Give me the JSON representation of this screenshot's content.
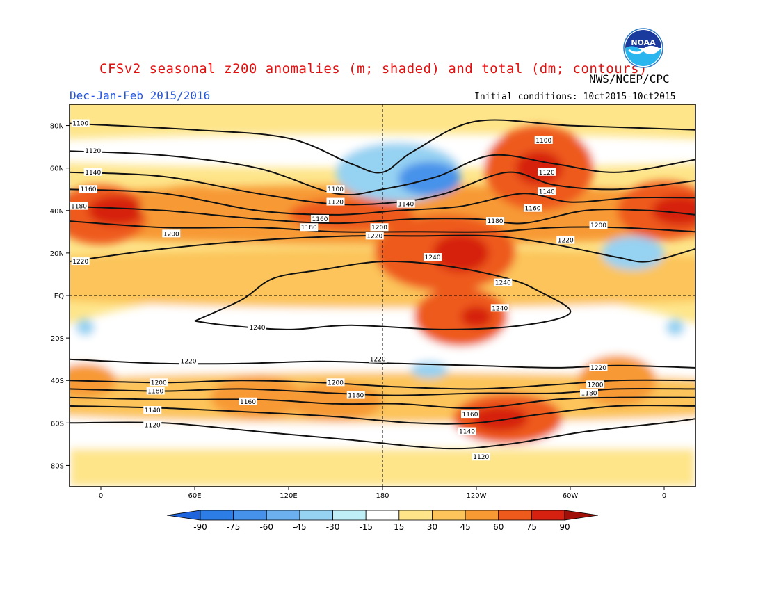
{
  "header": {
    "title": "CFSv2 seasonal z200 anomalies (m; shaded) and total (dm; contours)",
    "agency": "NWS/NCEP/CPC",
    "season": "Dec-Jan-Feb 2015/2016",
    "initial_conditions": "Initial conditions: 10ct2015-10ct2015",
    "logo_text": "NOAA"
  },
  "map": {
    "projection": "cylindrical equidistant",
    "lon_range": [
      -20,
      380
    ],
    "lat_range": [
      -90,
      90
    ],
    "lat_ticks": [
      {
        "value": 80,
        "label": "80N"
      },
      {
        "value": 60,
        "label": "60N"
      },
      {
        "value": 40,
        "label": "40N"
      },
      {
        "value": 20,
        "label": "20N"
      },
      {
        "value": 0,
        "label": "EQ"
      },
      {
        "value": -20,
        "label": "20S"
      },
      {
        "value": -40,
        "label": "40S"
      },
      {
        "value": -60,
        "label": "60S"
      },
      {
        "value": -80,
        "label": "80S"
      }
    ],
    "lon_ticks": [
      {
        "value": 0,
        "label": "0"
      },
      {
        "value": 60,
        "label": "60E"
      },
      {
        "value": 120,
        "label": "120E"
      },
      {
        "value": 180,
        "label": "180"
      },
      {
        "value": 240,
        "label": "120W"
      },
      {
        "value": 300,
        "label": "60W"
      },
      {
        "value": 360,
        "label": "0"
      }
    ],
    "reference_lines": {
      "equator": 0,
      "dateline": 180
    },
    "anomaly_patches": [
      {
        "lon": 0,
        "lat": 38,
        "rx": 30,
        "ry": 14,
        "level": 75
      },
      {
        "lon": 360,
        "lat": 40,
        "rx": 30,
        "ry": 14,
        "level": 75
      },
      {
        "lon": 10,
        "lat": 40,
        "rx": 18,
        "ry": 7,
        "level": 90
      },
      {
        "lon": 370,
        "lat": 40,
        "rx": 18,
        "ry": 7,
        "level": 90
      },
      {
        "lon": 60,
        "lat": 42,
        "rx": 35,
        "ry": 10,
        "level": 60
      },
      {
        "lon": 160,
        "lat": 38,
        "rx": 40,
        "ry": 8,
        "level": 75
      },
      {
        "lon": 280,
        "lat": 60,
        "rx": 35,
        "ry": 20,
        "level": 75
      },
      {
        "lon": 280,
        "lat": 60,
        "rx": 15,
        "ry": 8,
        "level": 90
      },
      {
        "lon": 220,
        "lat": 20,
        "rx": 45,
        "ry": 18,
        "level": 75
      },
      {
        "lon": 230,
        "lat": 20,
        "rx": 18,
        "ry": 9,
        "level": 90
      },
      {
        "lon": 230,
        "lat": -10,
        "rx": 30,
        "ry": 14,
        "level": 75
      },
      {
        "lon": 240,
        "lat": -10,
        "rx": 10,
        "ry": 5,
        "level": 90
      },
      {
        "lon": 100,
        "lat": -48,
        "rx": 30,
        "ry": 10,
        "level": 60
      },
      {
        "lon": 150,
        "lat": -50,
        "rx": 30,
        "ry": 9,
        "level": 60
      },
      {
        "lon": 260,
        "lat": -58,
        "rx": 35,
        "ry": 12,
        "level": 75
      },
      {
        "lon": 255,
        "lat": -58,
        "rx": 18,
        "ry": 6,
        "level": 90
      },
      {
        "lon": 330,
        "lat": -40,
        "rx": 25,
        "ry": 12,
        "level": 60
      },
      {
        "lon": -10,
        "lat": -40,
        "rx": 20,
        "ry": 8,
        "level": 60
      }
    ],
    "negative_patches": [
      {
        "lon": 190,
        "lat": 58,
        "rx": 40,
        "ry": 14,
        "level": -30
      },
      {
        "lon": 210,
        "lat": 55,
        "rx": 20,
        "ry": 8,
        "level": -60
      },
      {
        "lon": 340,
        "lat": 20,
        "rx": 20,
        "ry": 8,
        "level": -30
      },
      {
        "lon": 210,
        "lat": -35,
        "rx": 12,
        "ry": 4,
        "level": -30
      },
      {
        "lon": -10,
        "lat": -15,
        "rx": 6,
        "ry": 4,
        "level": -30
      },
      {
        "lon": 367,
        "lat": -15,
        "rx": 6,
        "ry": 4,
        "level": -30
      }
    ],
    "contour_lines": [
      {
        "value": 1100,
        "points": [
          [
            -20,
            81
          ],
          [
            60,
            78
          ],
          [
            120,
            74
          ],
          [
            160,
            62
          ],
          [
            180,
            58
          ],
          [
            200,
            68
          ],
          [
            240,
            82
          ],
          [
            300,
            80
          ],
          [
            380,
            78
          ]
        ]
      },
      {
        "value": 1120,
        "points": [
          [
            -20,
            68
          ],
          [
            40,
            66
          ],
          [
            100,
            60
          ],
          [
            150,
            48
          ],
          [
            180,
            50
          ],
          [
            215,
            56
          ],
          [
            250,
            66
          ],
          [
            290,
            62
          ],
          [
            330,
            58
          ],
          [
            380,
            64
          ]
        ]
      },
      {
        "value": 1140,
        "points": [
          [
            -20,
            58
          ],
          [
            40,
            56
          ],
          [
            100,
            48
          ],
          [
            150,
            43
          ],
          [
            190,
            44
          ],
          [
            220,
            48
          ],
          [
            260,
            58
          ],
          [
            290,
            52
          ],
          [
            330,
            50
          ],
          [
            380,
            54
          ]
        ]
      },
      {
        "value": 1160,
        "points": [
          [
            -20,
            50
          ],
          [
            40,
            48
          ],
          [
            100,
            40
          ],
          [
            150,
            38
          ],
          [
            190,
            40
          ],
          [
            230,
            42
          ],
          [
            270,
            48
          ],
          [
            300,
            44
          ],
          [
            340,
            46
          ],
          [
            380,
            46
          ]
        ]
      },
      {
        "value": 1180,
        "points": [
          [
            -20,
            42
          ],
          [
            40,
            40
          ],
          [
            100,
            36
          ],
          [
            150,
            34
          ],
          [
            200,
            36
          ],
          [
            240,
            36
          ],
          [
            270,
            34
          ],
          [
            310,
            40
          ],
          [
            350,
            40
          ],
          [
            380,
            38
          ]
        ]
      },
      {
        "value": 1200,
        "points": [
          [
            -20,
            35
          ],
          [
            40,
            32
          ],
          [
            100,
            32
          ],
          [
            150,
            30
          ],
          [
            200,
            30
          ],
          [
            250,
            30
          ],
          [
            290,
            32
          ],
          [
            330,
            32
          ],
          [
            380,
            30
          ]
        ]
      },
      {
        "value": 1220,
        "points": [
          [
            -20,
            16
          ],
          [
            40,
            22
          ],
          [
            100,
            26
          ],
          [
            160,
            28
          ],
          [
            200,
            28
          ],
          [
            250,
            28
          ],
          [
            290,
            24
          ],
          [
            330,
            18
          ],
          [
            350,
            16
          ],
          [
            380,
            22
          ]
        ]
      },
      {
        "value": 1240,
        "points": [
          [
            60,
            -12
          ],
          [
            90,
            -2
          ],
          [
            110,
            8
          ],
          [
            140,
            12
          ],
          [
            180,
            16
          ],
          [
            220,
            14
          ],
          [
            260,
            8
          ],
          [
            280,
            2
          ],
          [
            300,
            -8
          ],
          [
            270,
            -14
          ],
          [
            220,
            -16
          ],
          [
            160,
            -14
          ],
          [
            120,
            -16
          ],
          [
            80,
            -14
          ],
          [
            60,
            -12
          ]
        ]
      },
      {
        "value": 1220,
        "points": [
          [
            -20,
            -30
          ],
          [
            40,
            -32
          ],
          [
            90,
            -32
          ],
          [
            140,
            -31
          ],
          [
            190,
            -32
          ],
          [
            240,
            -33
          ],
          [
            290,
            -34
          ],
          [
            330,
            -33
          ],
          [
            380,
            -34
          ]
        ]
      },
      {
        "value": 1200,
        "points": [
          [
            -20,
            -40
          ],
          [
            40,
            -41
          ],
          [
            90,
            -40
          ],
          [
            140,
            -41
          ],
          [
            190,
            -43
          ],
          [
            240,
            -44
          ],
          [
            290,
            -42
          ],
          [
            330,
            -40
          ],
          [
            380,
            -40
          ]
        ]
      },
      {
        "value": 1180,
        "points": [
          [
            -20,
            -44
          ],
          [
            40,
            -45
          ],
          [
            90,
            -44
          ],
          [
            150,
            -46
          ],
          [
            190,
            -47
          ],
          [
            240,
            -46
          ],
          [
            290,
            -46
          ],
          [
            330,
            -44
          ],
          [
            380,
            -44
          ]
        ]
      },
      {
        "value": 1160,
        "points": [
          [
            -20,
            -48
          ],
          [
            40,
            -49
          ],
          [
            100,
            -49
          ],
          [
            150,
            -51
          ],
          [
            190,
            -51
          ],
          [
            240,
            -53
          ],
          [
            290,
            -49
          ],
          [
            330,
            -48
          ],
          [
            380,
            -48
          ]
        ]
      },
      {
        "value": 1140,
        "points": [
          [
            -20,
            -52
          ],
          [
            40,
            -53
          ],
          [
            100,
            -55
          ],
          [
            150,
            -57
          ],
          [
            200,
            -60
          ],
          [
            240,
            -60
          ],
          [
            280,
            -56
          ],
          [
            330,
            -52
          ],
          [
            380,
            -52
          ]
        ]
      },
      {
        "value": 1120,
        "points": [
          [
            -20,
            -60
          ],
          [
            40,
            -60
          ],
          [
            100,
            -64
          ],
          [
            160,
            -68
          ],
          [
            220,
            -72
          ],
          [
            260,
            -70
          ],
          [
            310,
            -64
          ],
          [
            360,
            -60
          ],
          [
            380,
            -58
          ]
        ]
      }
    ],
    "contour_labels": [
      {
        "text": "1100",
        "lon": -13,
        "lat": 81
      },
      {
        "text": "1120",
        "lon": -5,
        "lat": 68
      },
      {
        "text": "1140",
        "lon": -5,
        "lat": 58
      },
      {
        "text": "1160",
        "lon": -8,
        "lat": 50
      },
      {
        "text": "1180",
        "lon": -14,
        "lat": 42
      },
      {
        "text": "1200",
        "lon": 45,
        "lat": 29
      },
      {
        "text": "1220",
        "lon": -13,
        "lat": 16
      },
      {
        "text": "1100",
        "lon": 150,
        "lat": 50
      },
      {
        "text": "1120",
        "lon": 150,
        "lat": 44
      },
      {
        "text": "1160",
        "lon": 140,
        "lat": 36
      },
      {
        "text": "1180",
        "lon": 133,
        "lat": 32
      },
      {
        "text": "1140",
        "lon": 195,
        "lat": 43
      },
      {
        "text": "1200",
        "lon": 178,
        "lat": 32
      },
      {
        "text": "1220",
        "lon": 175,
        "lat": 28
      },
      {
        "text": "1240",
        "lon": 212,
        "lat": 18
      },
      {
        "text": "1100",
        "lon": 283,
        "lat": 73
      },
      {
        "text": "1120",
        "lon": 285,
        "lat": 58
      },
      {
        "text": "1140",
        "lon": 285,
        "lat": 49
      },
      {
        "text": "1160",
        "lon": 276,
        "lat": 41
      },
      {
        "text": "1180",
        "lon": 252,
        "lat": 35
      },
      {
        "text": "1200",
        "lon": 318,
        "lat": 33
      },
      {
        "text": "1220",
        "lon": 297,
        "lat": 26
      },
      {
        "text": "1240",
        "lon": 257,
        "lat": 6
      },
      {
        "text": "1240",
        "lon": 255,
        "lat": -6
      },
      {
        "text": "1240",
        "lon": 100,
        "lat": -15
      },
      {
        "text": "1220",
        "lon": 56,
        "lat": -31
      },
      {
        "text": "1220",
        "lon": 177,
        "lat": -30
      },
      {
        "text": "1220",
        "lon": 318,
        "lat": -34
      },
      {
        "text": "1200",
        "lon": 37,
        "lat": -41
      },
      {
        "text": "1200",
        "lon": 150,
        "lat": -41
      },
      {
        "text": "1200",
        "lon": 316,
        "lat": -42
      },
      {
        "text": "1180",
        "lon": 35,
        "lat": -45
      },
      {
        "text": "1180",
        "lon": 163,
        "lat": -47
      },
      {
        "text": "1180",
        "lon": 312,
        "lat": -46
      },
      {
        "text": "1160",
        "lon": 94,
        "lat": -50
      },
      {
        "text": "1160",
        "lon": 236,
        "lat": -56
      },
      {
        "text": "1140",
        "lon": 33,
        "lat": -54
      },
      {
        "text": "1140",
        "lon": 234,
        "lat": -64
      },
      {
        "text": "1120",
        "lon": 33,
        "lat": -61
      },
      {
        "text": "1120",
        "lon": 243,
        "lat": -76
      }
    ]
  },
  "colorbar": {
    "levels": [
      "-90",
      "-75",
      "-60",
      "-45",
      "-30",
      "-15",
      "15",
      "30",
      "45",
      "60",
      "75",
      "90"
    ],
    "colors": [
      "#1e64dc",
      "#2c7de6",
      "#4692ea",
      "#6cb0f0",
      "#96d2f2",
      "#c0eef6",
      "#ffffff",
      "#fee58a",
      "#fcc45a",
      "#f79a34",
      "#ee5a1c",
      "#d62010",
      "#a01008"
    ]
  }
}
